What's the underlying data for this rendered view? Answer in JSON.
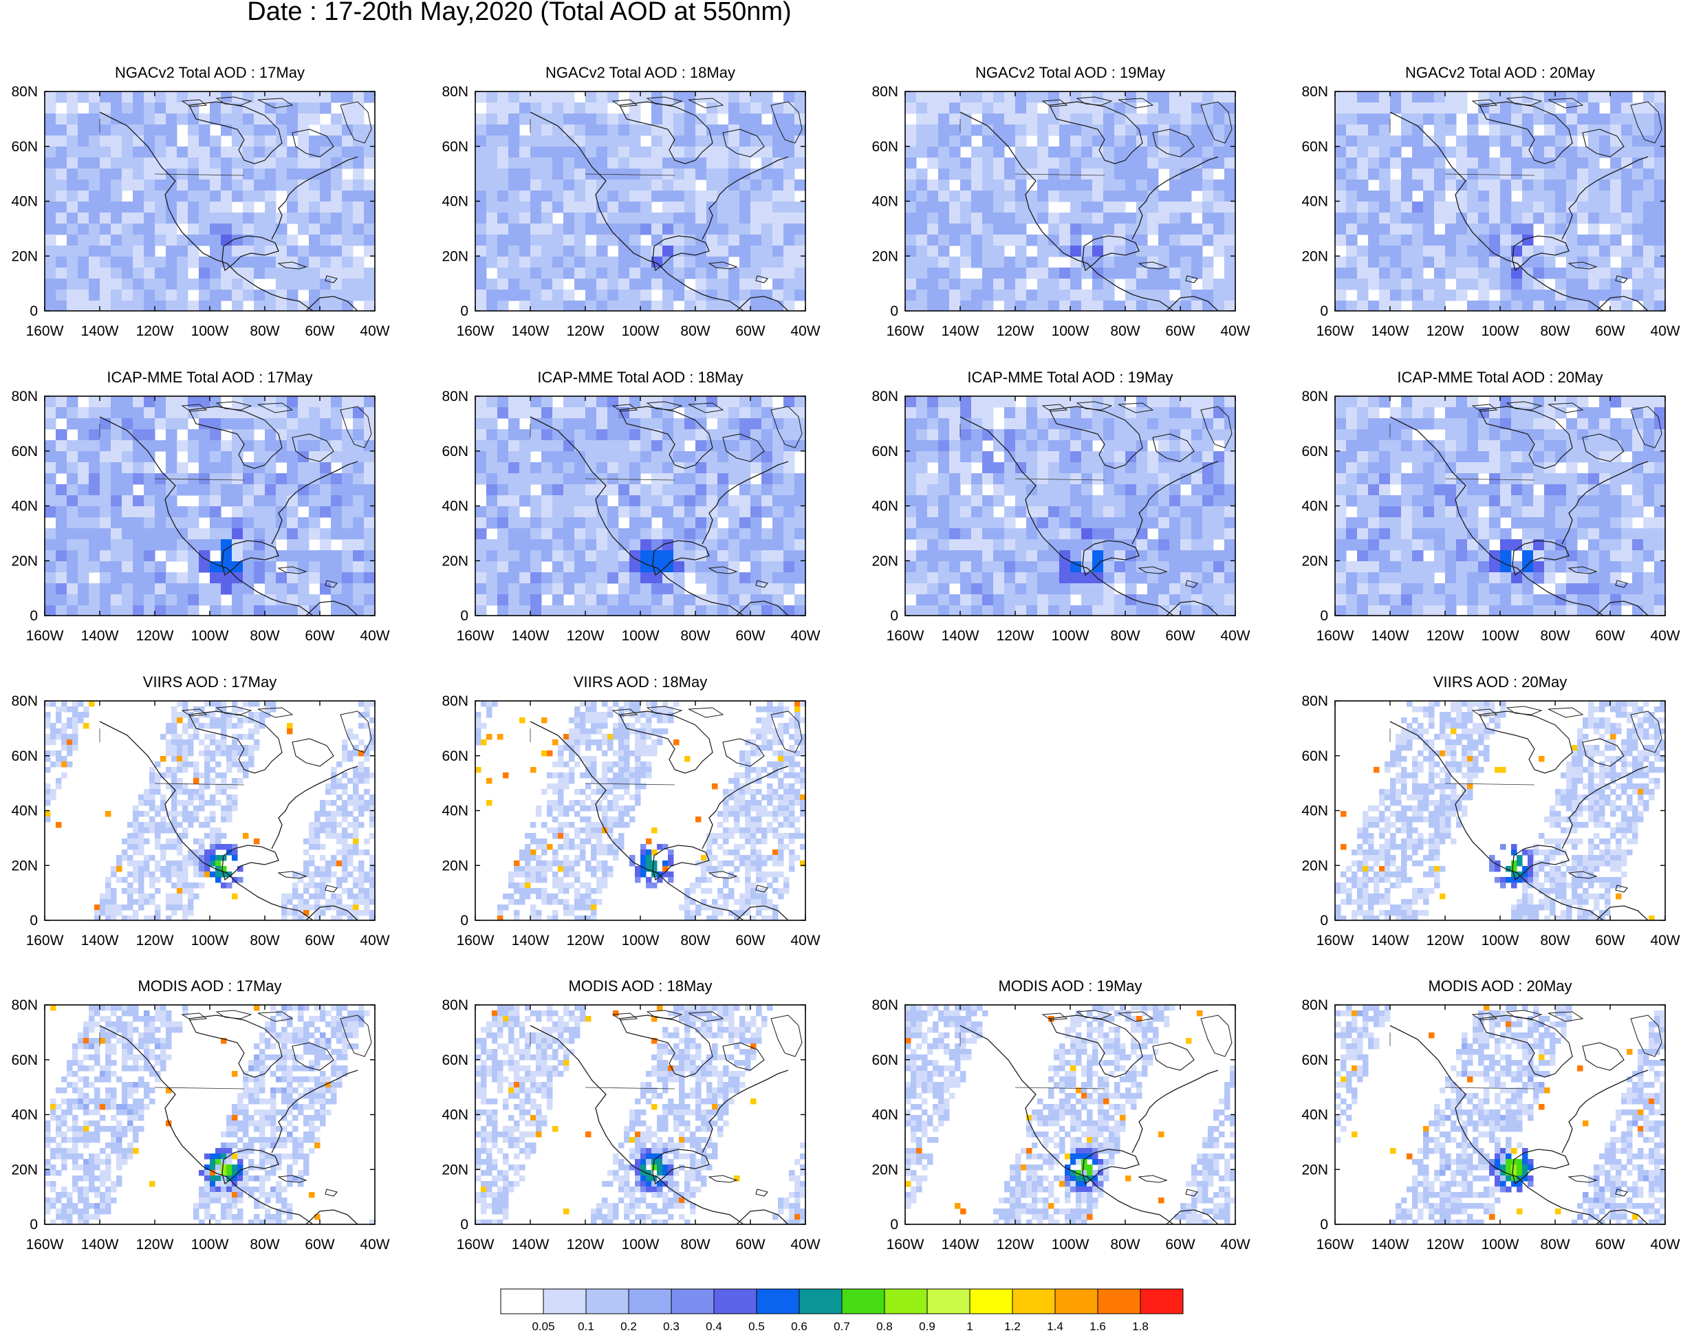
{
  "title": "Date : 17-20th May,2020 (Total AOD at 550nm)",
  "x_ticks": [
    "160W",
    "140W",
    "120W",
    "100W",
    "80W",
    "60W",
    "40W"
  ],
  "y_ticks": [
    "80N",
    "60N",
    "40N",
    "20N",
    "0"
  ],
  "map_extent": {
    "lon": [
      -160,
      -40
    ],
    "lat": [
      0,
      80
    ]
  },
  "panels": [
    {
      "row": 0,
      "col": 0,
      "title": "NGACv2 Total AOD : 17May",
      "product": "NGACv2",
      "day": "17May",
      "style": "model",
      "intensity": 0.3
    },
    {
      "row": 0,
      "col": 1,
      "title": "NGACv2 Total AOD : 18May",
      "product": "NGACv2",
      "day": "18May",
      "style": "model",
      "intensity": 0.32
    },
    {
      "row": 0,
      "col": 2,
      "title": "NGACv2 Total AOD : 19May",
      "product": "NGACv2",
      "day": "19May",
      "style": "model",
      "intensity": 0.33
    },
    {
      "row": 0,
      "col": 3,
      "title": "NGACv2 Total AOD : 20May",
      "product": "NGACv2",
      "day": "20May",
      "style": "model",
      "intensity": 0.34
    },
    {
      "row": 1,
      "col": 0,
      "title": "ICAP-MME Total AOD : 17May",
      "product": "ICAP-MME",
      "day": "17May",
      "style": "model",
      "intensity": 0.55
    },
    {
      "row": 1,
      "col": 1,
      "title": "ICAP-MME Total AOD : 18May",
      "product": "ICAP-MME",
      "day": "18May",
      "style": "model",
      "intensity": 0.5
    },
    {
      "row": 1,
      "col": 2,
      "title": "ICAP-MME Total AOD : 19May",
      "product": "ICAP-MME",
      "day": "19May",
      "style": "model",
      "intensity": 0.5
    },
    {
      "row": 1,
      "col": 3,
      "title": "ICAP-MME Total AOD : 20May",
      "product": "ICAP-MME",
      "day": "20May",
      "style": "model",
      "intensity": 0.5
    },
    {
      "row": 2,
      "col": 0,
      "title": "VIIRS AOD : 17May",
      "product": "VIIRS",
      "day": "17May",
      "style": "satellite",
      "intensity": 0.6
    },
    {
      "row": 2,
      "col": 1,
      "title": "VIIRS AOD : 18May",
      "product": "VIIRS",
      "day": "18May",
      "style": "satellite",
      "intensity": 0.55
    },
    {
      "row": 2,
      "col": 3,
      "title": "VIIRS AOD : 20May",
      "product": "VIIRS",
      "day": "20May",
      "style": "satellite",
      "intensity": 0.6
    },
    {
      "row": 3,
      "col": 0,
      "title": "MODIS AOD : 17May",
      "product": "MODIS",
      "day": "17May",
      "style": "satellite",
      "intensity": 0.7
    },
    {
      "row": 3,
      "col": 1,
      "title": "MODIS AOD : 18May",
      "product": "MODIS",
      "day": "18May",
      "style": "satellite",
      "intensity": 0.6
    },
    {
      "row": 3,
      "col": 2,
      "title": "MODIS AOD : 19May",
      "product": "MODIS",
      "day": "19May",
      "style": "satellite",
      "intensity": 0.65
    },
    {
      "row": 3,
      "col": 3,
      "title": "MODIS AOD : 20May",
      "product": "MODIS",
      "day": "20May",
      "style": "satellite",
      "intensity": 0.7
    }
  ],
  "colorbar": {
    "colors": [
      "#ffffff",
      "#d2dcfa",
      "#b4c6f8",
      "#96acf4",
      "#7c8ef0",
      "#5c64ea",
      "#0a64f0",
      "#0a9696",
      "#46dc14",
      "#96f014",
      "#c8fa46",
      "#ffff00",
      "#ffc800",
      "#ffa000",
      "#ff7800",
      "#ff1e14"
    ],
    "labels": [
      "0.05",
      "0.1",
      "0.2",
      "0.3",
      "0.4",
      "0.5",
      "0.6",
      "0.7",
      "0.8",
      "0.9",
      "1",
      "1.2",
      "1.4",
      "1.6",
      "1.8"
    ]
  }
}
